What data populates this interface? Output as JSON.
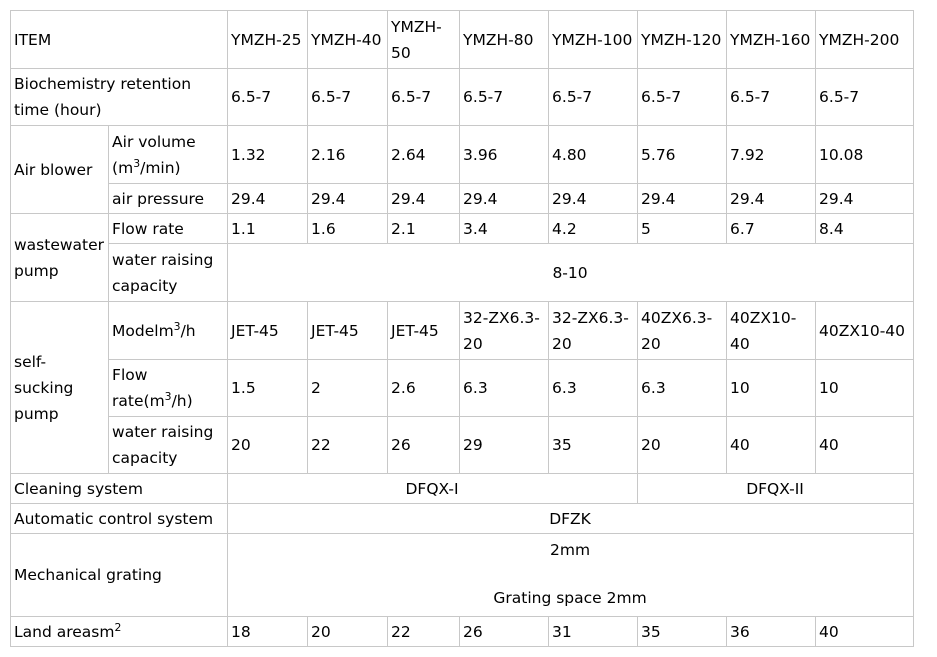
{
  "table": {
    "header": {
      "item_label": "ITEM",
      "models": [
        "YMZH-25",
        "YMZH-40",
        "YMZH-50",
        "YMZH-80",
        "YMZH-100",
        "YMZH-120",
        "YMZH-160",
        "YMZH-200"
      ]
    },
    "retention": {
      "label": "Biochemistry retention time (hour)",
      "values": [
        "6.5-7",
        "6.5-7",
        "6.5-7",
        "6.5-7",
        "6.5-7",
        "6.5-7",
        "6.5-7",
        "6.5-7"
      ]
    },
    "air_blower": {
      "label": "Air blower",
      "volume_label": "Air volume (m",
      "volume_sup": "3",
      "volume_suffix": "/min)",
      "volume_values": [
        "1.32",
        "2.16",
        "2.64",
        "3.96",
        "4.80",
        "5.76",
        "7.92",
        "10.08"
      ],
      "pressure_label": "air pressure",
      "pressure_values": [
        "29.4",
        "29.4",
        "29.4",
        "29.4",
        "29.4",
        "29.4",
        "29.4",
        "29.4"
      ]
    },
    "wastewater_pump": {
      "label": "wastewater pump",
      "flow_label": "Flow rate",
      "flow_values": [
        "1.1",
        "1.6",
        "2.1",
        "3.4",
        "4.2",
        "5",
        "6.7",
        "8.4"
      ],
      "raising_label": "water raising capacity",
      "raising_value": "8-10"
    },
    "self_sucking_pump": {
      "label": "self-sucking pump",
      "model_label": "Modelm",
      "model_sup": "3",
      "model_suffix": "/h",
      "model_values": [
        "JET-45",
        "JET-45",
        "JET-45",
        "32-ZX6.3-20",
        "32-ZX6.3-20",
        "40ZX6.3-20",
        "40ZX10-40",
        "40ZX10-40"
      ],
      "flow_label": "Flow rate(m",
      "flow_sup": "3",
      "flow_suffix": "/h)",
      "flow_values": [
        "1.5",
        "2",
        "2.6",
        "6.3",
        "6.3",
        "6.3",
        "10",
        "10"
      ],
      "raising_label": "water raising capacity",
      "raising_values": [
        "20",
        "22",
        "26",
        "29",
        "35",
        "20",
        "40",
        "40"
      ]
    },
    "cleaning": {
      "label": "Cleaning system",
      "value_1": "DFQX-I",
      "value_2": "DFQX-II"
    },
    "control": {
      "label": "Automatic control system",
      "value": "DFZK"
    },
    "grating": {
      "label": "Mechanical grating",
      "value_top": "2mm",
      "value_bottom": "Grating space 2mm"
    },
    "land": {
      "label": "Land areasm",
      "sup": "2",
      "values": [
        "18",
        "20",
        "22",
        "26",
        "31",
        "35",
        "36",
        "40"
      ]
    }
  }
}
